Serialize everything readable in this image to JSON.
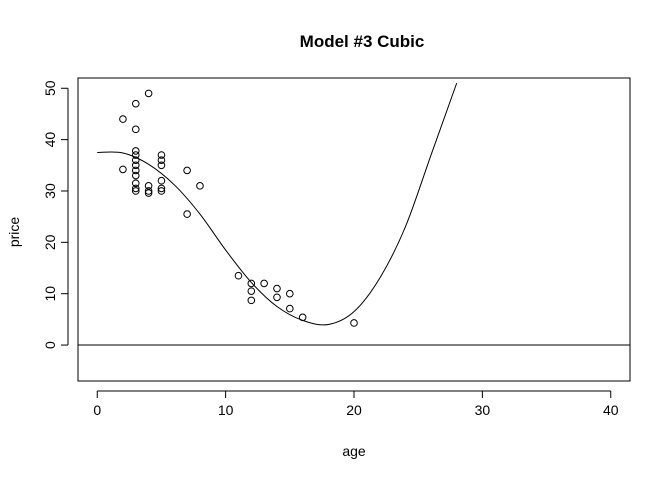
{
  "chart_data": {
    "type": "scatter",
    "title": "Model #3 Cubic",
    "xlabel": "age",
    "ylabel": "price",
    "xlim": [
      -1.5,
      41.5
    ],
    "ylim": [
      -7,
      52
    ],
    "x_ticks": [
      0,
      10,
      20,
      30,
      40
    ],
    "y_ticks": [
      0,
      10,
      20,
      30,
      40,
      50
    ],
    "grid": false,
    "reference_line": {
      "type": "horizontal",
      "y": 0
    },
    "points": [
      {
        "x": 2,
        "y": 44
      },
      {
        "x": 2,
        "y": 34.2
      },
      {
        "x": 3,
        "y": 47
      },
      {
        "x": 3,
        "y": 42
      },
      {
        "x": 3,
        "y": 37.8
      },
      {
        "x": 3,
        "y": 37
      },
      {
        "x": 3,
        "y": 36
      },
      {
        "x": 3,
        "y": 35
      },
      {
        "x": 3,
        "y": 34
      },
      {
        "x": 3,
        "y": 33
      },
      {
        "x": 3,
        "y": 31.5
      },
      {
        "x": 3,
        "y": 30.5
      },
      {
        "x": 3,
        "y": 30
      },
      {
        "x": 4,
        "y": 49
      },
      {
        "x": 4,
        "y": 31
      },
      {
        "x": 4,
        "y": 30
      },
      {
        "x": 4,
        "y": 29.6
      },
      {
        "x": 5,
        "y": 37
      },
      {
        "x": 5,
        "y": 36
      },
      {
        "x": 5,
        "y": 35
      },
      {
        "x": 5,
        "y": 32
      },
      {
        "x": 5,
        "y": 30.5
      },
      {
        "x": 5,
        "y": 30
      },
      {
        "x": 7,
        "y": 34
      },
      {
        "x": 7,
        "y": 25.5
      },
      {
        "x": 8,
        "y": 31
      },
      {
        "x": 11,
        "y": 13.5
      },
      {
        "x": 12,
        "y": 12
      },
      {
        "x": 12,
        "y": 10.5
      },
      {
        "x": 12,
        "y": 8.7
      },
      {
        "x": 13,
        "y": 12
      },
      {
        "x": 14,
        "y": 11
      },
      {
        "x": 14,
        "y": 9.3
      },
      {
        "x": 15,
        "y": 10
      },
      {
        "x": 15,
        "y": 7.1
      },
      {
        "x": 16,
        "y": 5.4
      },
      {
        "x": 20,
        "y": 4.3
      }
    ],
    "fit": {
      "name": "cubic",
      "x": [
        0,
        2,
        4,
        6,
        8,
        10,
        12,
        14,
        16,
        18,
        20,
        22,
        24,
        26,
        28
      ],
      "y": [
        37.5,
        37.4,
        35.2,
        31.2,
        25.5,
        18.5,
        12.2,
        7.5,
        4.8,
        4,
        6.5,
        13,
        23,
        37,
        51
      ]
    }
  }
}
